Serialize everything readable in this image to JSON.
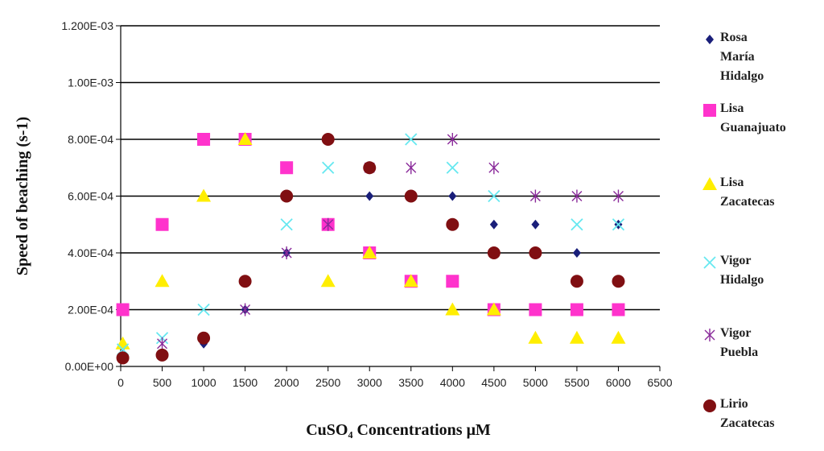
{
  "chart_data": {
    "type": "scatter",
    "title": "",
    "xlabel": "CuSO₄ Concentrations μM",
    "ylabel": "Speed of beaching (s-1)",
    "xlim": [
      0,
      6500
    ],
    "ylim": [
      0,
      0.0012
    ],
    "x_ticks": [
      0,
      500,
      1000,
      1500,
      2000,
      2500,
      3000,
      3500,
      4000,
      4500,
      5000,
      5500,
      6000,
      6500
    ],
    "x_tick_labels": [
      "0",
      "500",
      "1000",
      "1500",
      "2000",
      "2500",
      "3000",
      "3500",
      "4000",
      "4500",
      "5000",
      "5500",
      "6000",
      "6500"
    ],
    "y_ticks": [
      0,
      0.0002,
      0.0004,
      0.0006,
      0.0008,
      0.001,
      0.0012
    ],
    "y_tick_labels": [
      "0.00E+00",
      "2.00E-04",
      "4.00E-04",
      "6.00E-04",
      "8.00E-04",
      "1.00E-03",
      "1.200E-03"
    ],
    "grid": "horizontal",
    "legend_position": "right",
    "series": [
      {
        "name": "Rosa María Hidalgo",
        "legend_lines": [
          "Rosa",
          "María",
          "Hidalgo"
        ],
        "marker": "diamond",
        "color": "#1a1f7a",
        "points": [
          [
            25,
            7e-05
          ],
          [
            500,
            4e-05
          ],
          [
            1000,
            8e-05
          ],
          [
            1500,
            0.0002
          ],
          [
            2000,
            0.0004
          ],
          [
            2500,
            0.0005
          ],
          [
            3000,
            0.0006
          ],
          [
            3500,
            0.0006
          ],
          [
            4000,
            0.0006
          ],
          [
            4500,
            0.0005
          ],
          [
            5000,
            0.0005
          ],
          [
            5500,
            0.0004
          ],
          [
            6000,
            0.0005
          ]
        ]
      },
      {
        "name": "Lisa Guanajuato",
        "legend_lines": [
          "Lisa",
          "Guanajuato"
        ],
        "marker": "square",
        "color": "#ff33cc",
        "points": [
          [
            25,
            0.0002
          ],
          [
            500,
            0.0005
          ],
          [
            1000,
            0.0008
          ],
          [
            1500,
            0.0008
          ],
          [
            2000,
            0.0007
          ],
          [
            2500,
            0.0005
          ],
          [
            3000,
            0.0004
          ],
          [
            3500,
            0.0003
          ],
          [
            4000,
            0.0003
          ],
          [
            4500,
            0.0002
          ],
          [
            5000,
            0.0002
          ],
          [
            5500,
            0.0002
          ],
          [
            6000,
            0.0002
          ]
        ]
      },
      {
        "name": "Lisa Zacatecas",
        "legend_lines": [
          "Lisa",
          "Zacatecas"
        ],
        "marker": "triangle",
        "color": "#ffee00",
        "points": [
          [
            25,
            8e-05
          ],
          [
            500,
            0.0003
          ],
          [
            1000,
            0.0006
          ],
          [
            1500,
            0.0008
          ],
          [
            2500,
            0.0003
          ],
          [
            3000,
            0.0004
          ],
          [
            3500,
            0.0003
          ],
          [
            4000,
            0.0002
          ],
          [
            4500,
            0.0002
          ],
          [
            5000,
            0.0001
          ],
          [
            5500,
            0.0001
          ],
          [
            6000,
            0.0001
          ]
        ]
      },
      {
        "name": "Vigor Hidalgo",
        "legend_lines": [
          "Vigor",
          "Hidalgo"
        ],
        "marker": "x",
        "color": "#66e8f0",
        "points": [
          [
            25,
            6e-05
          ],
          [
            500,
            0.0001
          ],
          [
            1000,
            0.0002
          ],
          [
            2000,
            0.0005
          ],
          [
            2500,
            0.0007
          ],
          [
            3500,
            0.0008
          ],
          [
            4000,
            0.0007
          ],
          [
            4500,
            0.0006
          ],
          [
            5500,
            0.0005
          ],
          [
            6000,
            0.0005
          ]
        ]
      },
      {
        "name": "Vigor Puebla",
        "legend_lines": [
          "Vigor",
          "Puebla"
        ],
        "marker": "star",
        "color": "#8a2a9a",
        "points": [
          [
            500,
            8e-05
          ],
          [
            1500,
            0.0002
          ],
          [
            2000,
            0.0004
          ],
          [
            2500,
            0.0005
          ],
          [
            3000,
            0.0007
          ],
          [
            3500,
            0.0007
          ],
          [
            4000,
            0.0008
          ],
          [
            4500,
            0.0007
          ],
          [
            5000,
            0.0006
          ],
          [
            5500,
            0.0006
          ],
          [
            6000,
            0.0006
          ]
        ]
      },
      {
        "name": "Lirio Zacatecas",
        "legend_lines": [
          "Lirio",
          "Zacatecas"
        ],
        "marker": "circle",
        "color": "#800f12",
        "points": [
          [
            25,
            3e-05
          ],
          [
            500,
            4e-05
          ],
          [
            1000,
            0.0001
          ],
          [
            1500,
            0.0003
          ],
          [
            2000,
            0.0006
          ],
          [
            2500,
            0.0008
          ],
          [
            3000,
            0.0007
          ],
          [
            3500,
            0.0006
          ],
          [
            4000,
            0.0005
          ],
          [
            4500,
            0.0004
          ],
          [
            5000,
            0.0004
          ],
          [
            5500,
            0.0003
          ],
          [
            6000,
            0.0003
          ]
        ]
      }
    ]
  }
}
